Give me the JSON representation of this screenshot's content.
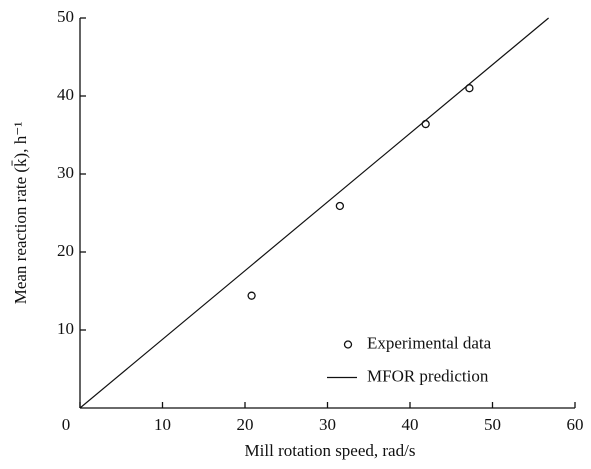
{
  "chart_data": {
    "type": "scatter",
    "x_label": "Mill rotation speed,  rad/s",
    "y_label": "Mean reaction rate (k̄),  h⁻¹",
    "xlim": [
      0,
      60
    ],
    "ylim": [
      0,
      50
    ],
    "xticks": [
      0,
      10,
      20,
      30,
      40,
      50,
      60
    ],
    "yticks": [
      10,
      20,
      30,
      40,
      50
    ],
    "legend": "lower right",
    "series": [
      {
        "name": "Experimental data",
        "style": "markers",
        "color": "#111111",
        "x": [
          20.8,
          31.5,
          41.9,
          47.2
        ],
        "values": [
          14.4,
          25.9,
          36.4,
          41.0
        ]
      },
      {
        "name": "MFOR prediction",
        "style": "line",
        "color": "#111111",
        "x": [
          0,
          56.8
        ],
        "values": [
          0,
          50
        ]
      }
    ]
  }
}
